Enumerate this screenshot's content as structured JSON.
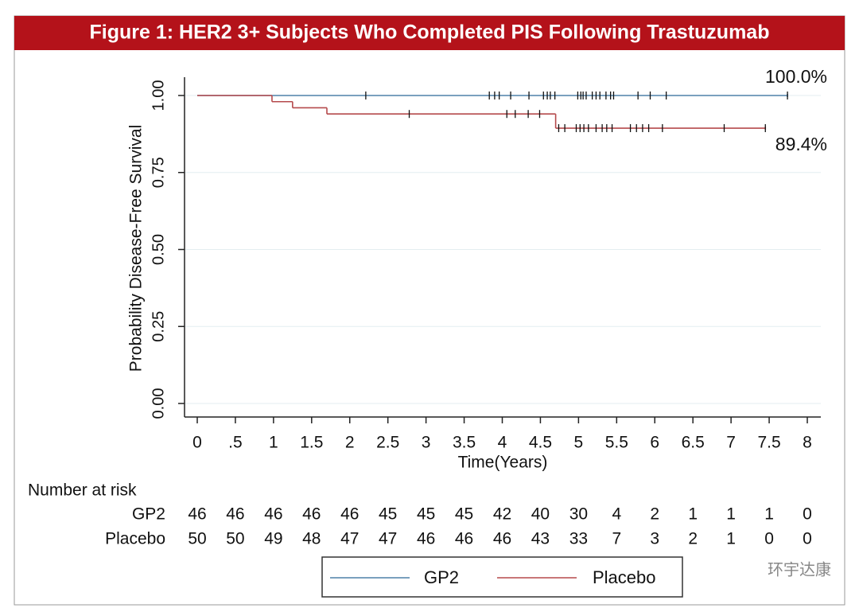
{
  "chart_data": {
    "type": "step",
    "title": "Figure 1: HER2 3+ Subjects Who Completed PIS Following Trastuzumab",
    "y_label": "Probability Disease-Free Survival",
    "x_label": "Time(Years)",
    "xlim": [
      0,
      8
    ],
    "xticks": [
      0,
      {
        "value": 0.5,
        "label": ".5"
      },
      1,
      1.5,
      2,
      2.5,
      3,
      3.5,
      4,
      4.5,
      5,
      5.5,
      6,
      6.5,
      7,
      7.5,
      8
    ],
    "ylim": [
      0,
      1.08
    ],
    "yticks": [
      {
        "value": 0,
        "label": "0.00"
      },
      {
        "value": 0.25,
        "label": "0.25"
      },
      {
        "value": 0.5,
        "label": "0.50"
      },
      {
        "value": 0.75,
        "label": "0.75"
      },
      {
        "value": 1,
        "label": "1.00"
      }
    ],
    "grid": true,
    "series": [
      {
        "name": "GP2",
        "color": "#4f80a8",
        "x": [
          0,
          7.74
        ],
        "values": [
          1,
          1
        ],
        "end_label": "100.0%",
        "censored": [
          2.21,
          3.83,
          3.9,
          3.96,
          4.11,
          4.35,
          4.54,
          4.59,
          4.63,
          4.69,
          4.99,
          5.03,
          5.06,
          5.1,
          5.18,
          5.23,
          5.28,
          5.36,
          5.42,
          5.46,
          5.78,
          5.94,
          6.15,
          7.74
        ],
        "at_risk": [
          46,
          46,
          46,
          46,
          46,
          45,
          45,
          45,
          42,
          40,
          30,
          4,
          2,
          1,
          1,
          1,
          0
        ]
      },
      {
        "name": "Placebo",
        "color": "#b54a4c",
        "x": [
          0,
          0.98,
          1.25,
          1.7,
          4.7,
          7.45
        ],
        "values": [
          1,
          0.98,
          0.96,
          0.94,
          0.894,
          0.894
        ],
        "end_label": "89.4%",
        "censored": [
          2.78,
          4.06,
          4.17,
          4.34,
          4.49,
          4.74,
          4.82,
          4.97,
          5.02,
          5.07,
          5.13,
          5.23,
          5.31,
          5.37,
          5.44,
          5.68,
          5.76,
          5.84,
          5.92,
          6.1,
          6.91,
          7.45
        ],
        "at_risk": [
          50,
          50,
          49,
          48,
          47,
          47,
          46,
          46,
          46,
          43,
          33,
          7,
          3,
          2,
          1,
          0,
          0
        ]
      }
    ],
    "at_risk_title": "Number at risk",
    "legend": "bottom",
    "watermark": "环宇达康"
  }
}
